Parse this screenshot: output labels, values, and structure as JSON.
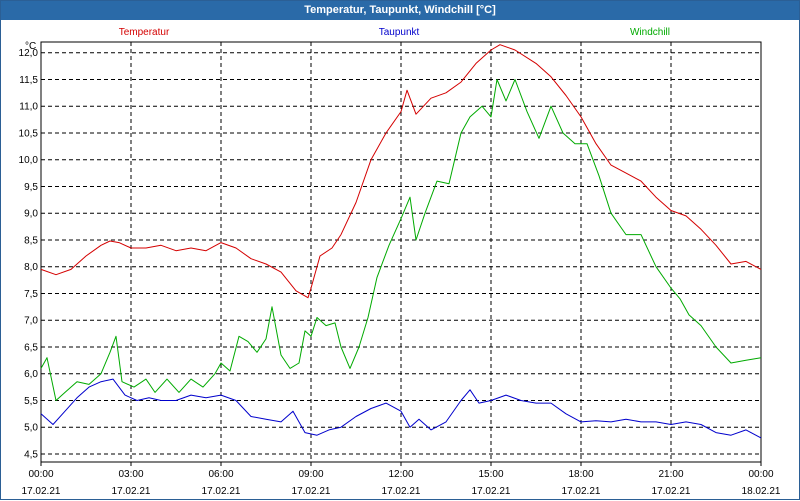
{
  "window": {
    "title": "Temperatur, Taupunkt, Windchill [°C]"
  },
  "chart_data": {
    "type": "line",
    "title": "Temperatur, Taupunkt, Windchill [°C]",
    "ylabel": "°C",
    "ylim": [
      4.35,
      12.2
    ],
    "xlim": [
      0,
      24
    ],
    "grid": true,
    "legend_position": "top",
    "y_ticks": [
      "12,0",
      "11,5",
      "11,0",
      "10,5",
      "10,0",
      "9,5",
      "9,0",
      "8,5",
      "8,0",
      "7,5",
      "7,0",
      "6,5",
      "6,0",
      "5,5",
      "5,0",
      "4,5"
    ],
    "x_ticks": [
      {
        "time": "00:00",
        "date": "17.02.21"
      },
      {
        "time": "03:00",
        "date": "17.02.21"
      },
      {
        "time": "06:00",
        "date": "17.02.21"
      },
      {
        "time": "09:00",
        "date": "17.02.21"
      },
      {
        "time": "12:00",
        "date": "17.02.21"
      },
      {
        "time": "15:00",
        "date": "17.02.21"
      },
      {
        "time": "18:00",
        "date": "17.02.21"
      },
      {
        "time": "21:00",
        "date": "17.02.21"
      },
      {
        "time": "00:00",
        "date": "18.02.21"
      }
    ],
    "series": [
      {
        "name": "Temperatur",
        "color": "#d40000",
        "points": [
          [
            0,
            7.95
          ],
          [
            0.5,
            7.85
          ],
          [
            1,
            7.95
          ],
          [
            1.5,
            8.2
          ],
          [
            2,
            8.4
          ],
          [
            2.3,
            8.48
          ],
          [
            2.6,
            8.45
          ],
          [
            3,
            8.35
          ],
          [
            3.5,
            8.35
          ],
          [
            4,
            8.4
          ],
          [
            4.5,
            8.3
          ],
          [
            5,
            8.35
          ],
          [
            5.5,
            8.3
          ],
          [
            6,
            8.45
          ],
          [
            6.5,
            8.35
          ],
          [
            7,
            8.15
          ],
          [
            7.5,
            8.05
          ],
          [
            8,
            7.9
          ],
          [
            8.5,
            7.55
          ],
          [
            8.9,
            7.42
          ],
          [
            9,
            7.6
          ],
          [
            9.3,
            8.2
          ],
          [
            9.7,
            8.35
          ],
          [
            10,
            8.6
          ],
          [
            10.5,
            9.2
          ],
          [
            11,
            10.0
          ],
          [
            11.5,
            10.5
          ],
          [
            12,
            10.9
          ],
          [
            12.2,
            11.3
          ],
          [
            12.5,
            10.85
          ],
          [
            13,
            11.15
          ],
          [
            13.5,
            11.25
          ],
          [
            14,
            11.45
          ],
          [
            14.5,
            11.8
          ],
          [
            15,
            12.05
          ],
          [
            15.3,
            12.15
          ],
          [
            15.8,
            12.05
          ],
          [
            16.5,
            11.8
          ],
          [
            17,
            11.55
          ],
          [
            17.5,
            11.2
          ],
          [
            18,
            10.8
          ],
          [
            18.5,
            10.3
          ],
          [
            19,
            9.9
          ],
          [
            19.5,
            9.75
          ],
          [
            20,
            9.6
          ],
          [
            20.5,
            9.3
          ],
          [
            21,
            9.05
          ],
          [
            21.5,
            8.95
          ],
          [
            22,
            8.7
          ],
          [
            22.5,
            8.4
          ],
          [
            23,
            8.05
          ],
          [
            23.5,
            8.1
          ],
          [
            24,
            7.95
          ]
        ]
      },
      {
        "name": "Taupunkt",
        "color": "#0000cc",
        "points": [
          [
            0,
            5.25
          ],
          [
            0.4,
            5.05
          ],
          [
            0.8,
            5.3
          ],
          [
            1.2,
            5.55
          ],
          [
            1.6,
            5.75
          ],
          [
            2,
            5.85
          ],
          [
            2.4,
            5.9
          ],
          [
            2.8,
            5.6
          ],
          [
            3.2,
            5.5
          ],
          [
            3.6,
            5.55
          ],
          [
            4,
            5.5
          ],
          [
            4.5,
            5.5
          ],
          [
            5,
            5.6
          ],
          [
            5.5,
            5.55
          ],
          [
            6,
            5.6
          ],
          [
            6.5,
            5.5
          ],
          [
            7,
            5.2
          ],
          [
            7.5,
            5.15
          ],
          [
            8,
            5.1
          ],
          [
            8.4,
            5.3
          ],
          [
            8.8,
            4.9
          ],
          [
            9.2,
            4.85
          ],
          [
            9.6,
            4.95
          ],
          [
            10,
            5.0
          ],
          [
            10.5,
            5.2
          ],
          [
            11,
            5.35
          ],
          [
            11.5,
            5.45
          ],
          [
            12,
            5.3
          ],
          [
            12.3,
            5.0
          ],
          [
            12.6,
            5.15
          ],
          [
            13,
            4.95
          ],
          [
            13.5,
            5.1
          ],
          [
            14,
            5.5
          ],
          [
            14.3,
            5.7
          ],
          [
            14.6,
            5.45
          ],
          [
            15,
            5.5
          ],
          [
            15.5,
            5.6
          ],
          [
            16,
            5.5
          ],
          [
            16.5,
            5.45
          ],
          [
            17,
            5.45
          ],
          [
            17.5,
            5.25
          ],
          [
            18,
            5.1
          ],
          [
            18.5,
            5.12
          ],
          [
            19,
            5.1
          ],
          [
            19.5,
            5.15
          ],
          [
            20,
            5.1
          ],
          [
            20.5,
            5.1
          ],
          [
            21,
            5.05
          ],
          [
            21.5,
            5.1
          ],
          [
            22,
            5.05
          ],
          [
            22.5,
            4.9
          ],
          [
            23,
            4.85
          ],
          [
            23.5,
            4.95
          ],
          [
            24,
            4.8
          ]
        ]
      },
      {
        "name": "Windchill",
        "color": "#00aa00",
        "points": [
          [
            0,
            6.1
          ],
          [
            0.2,
            6.3
          ],
          [
            0.5,
            5.5
          ],
          [
            0.8,
            5.65
          ],
          [
            1.2,
            5.85
          ],
          [
            1.6,
            5.8
          ],
          [
            2,
            6.0
          ],
          [
            2.3,
            6.4
          ],
          [
            2.5,
            6.7
          ],
          [
            2.7,
            5.85
          ],
          [
            3.1,
            5.75
          ],
          [
            3.5,
            5.9
          ],
          [
            3.8,
            5.65
          ],
          [
            4.2,
            5.9
          ],
          [
            4.6,
            5.65
          ],
          [
            5,
            5.9
          ],
          [
            5.4,
            5.75
          ],
          [
            5.8,
            6.0
          ],
          [
            6,
            6.2
          ],
          [
            6.3,
            6.05
          ],
          [
            6.6,
            6.7
          ],
          [
            6.9,
            6.6
          ],
          [
            7.2,
            6.4
          ],
          [
            7.5,
            6.65
          ],
          [
            7.7,
            7.25
          ],
          [
            8,
            6.35
          ],
          [
            8.3,
            6.1
          ],
          [
            8.6,
            6.2
          ],
          [
            8.8,
            6.8
          ],
          [
            9,
            6.7
          ],
          [
            9.2,
            7.05
          ],
          [
            9.5,
            6.9
          ],
          [
            9.8,
            6.95
          ],
          [
            10,
            6.5
          ],
          [
            10.3,
            6.1
          ],
          [
            10.6,
            6.5
          ],
          [
            10.9,
            7.05
          ],
          [
            11.2,
            7.8
          ],
          [
            11.6,
            8.4
          ],
          [
            12,
            8.9
          ],
          [
            12.3,
            9.3
          ],
          [
            12.5,
            8.5
          ],
          [
            12.8,
            9.0
          ],
          [
            13.2,
            9.6
          ],
          [
            13.6,
            9.55
          ],
          [
            14,
            10.5
          ],
          [
            14.3,
            10.8
          ],
          [
            14.7,
            11.0
          ],
          [
            15,
            10.8
          ],
          [
            15.2,
            11.5
          ],
          [
            15.5,
            11.1
          ],
          [
            15.8,
            11.5
          ],
          [
            16.2,
            10.9
          ],
          [
            16.6,
            10.4
          ],
          [
            17,
            11.0
          ],
          [
            17.4,
            10.5
          ],
          [
            17.8,
            10.3
          ],
          [
            18.2,
            10.3
          ],
          [
            18.6,
            9.7
          ],
          [
            19,
            9.0
          ],
          [
            19.5,
            8.6
          ],
          [
            20,
            8.6
          ],
          [
            20.5,
            8.0
          ],
          [
            21,
            7.6
          ],
          [
            21.3,
            7.4
          ],
          [
            21.6,
            7.1
          ],
          [
            22,
            6.9
          ],
          [
            22.5,
            6.5
          ],
          [
            23,
            6.2
          ],
          [
            23.5,
            6.25
          ],
          [
            24,
            6.3
          ]
        ]
      }
    ]
  }
}
